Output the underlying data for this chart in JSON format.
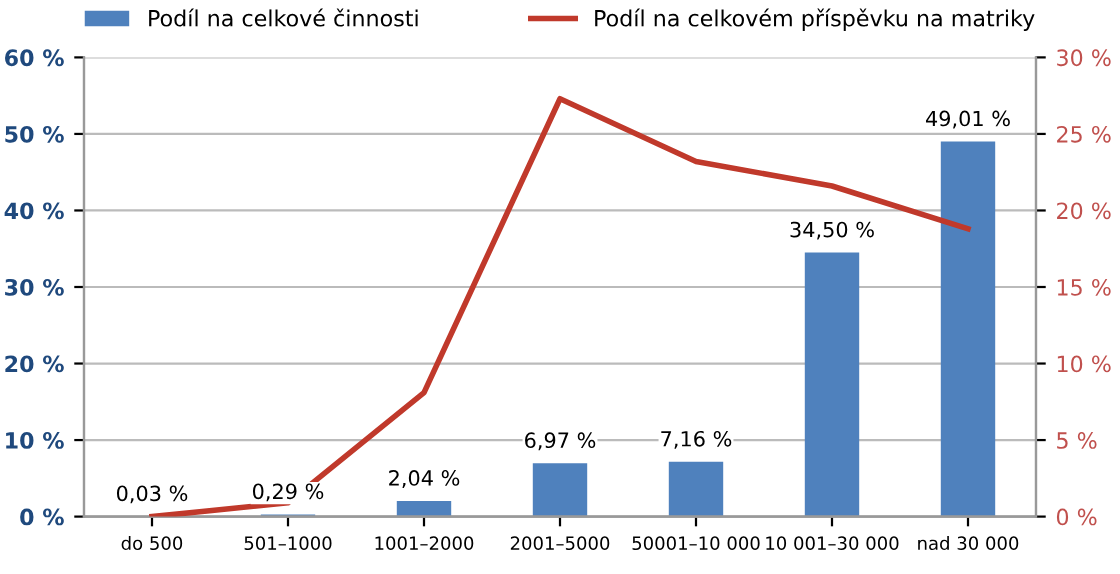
{
  "chart_data": {
    "type": "bar",
    "categories": [
      "do 500",
      "501–1000",
      "1001–2000",
      "2001–5000",
      "50001–10 000",
      "10 001–30 000",
      "nad 30 000"
    ],
    "series": [
      {
        "name": "Podíl na celkové činnosti",
        "color": "#4f81bd",
        "values": [
          0.03,
          0.29,
          2.04,
          6.97,
          7.16,
          34.5,
          49.01
        ],
        "value_labels": [
          "0,03 %",
          "0,29 %",
          "2,04 %",
          "6,97 %",
          "7,16 %",
          "34,50 %",
          "49,01 %"
        ]
      },
      {
        "name": "Podíl na celkovém příspěvku na matriky",
        "type": "line",
        "axis": "y2",
        "color": "#c0392b",
        "values": [
          0,
          0.9,
          8.1,
          27.3,
          23.2,
          21.6,
          18.8
        ]
      }
    ],
    "ylim": [
      0,
      60
    ],
    "yticks": [
      {
        "value": 0,
        "label": "0 %"
      },
      {
        "value": 10,
        "label": "10 %"
      },
      {
        "value": 20,
        "label": "20 %"
      },
      {
        "value": 30,
        "label": "30 %"
      },
      {
        "value": 40,
        "label": "40 %"
      },
      {
        "value": 50,
        "label": "50 %"
      },
      {
        "value": 60,
        "label": "60 %"
      }
    ],
    "y2lim": [
      0,
      30
    ],
    "y2ticks": [
      {
        "value": 0,
        "label": "0 %"
      },
      {
        "value": 5,
        "label": "5 %"
      },
      {
        "value": 10,
        "label": "10 %"
      },
      {
        "value": 15,
        "label": "15 %"
      },
      {
        "value": 20,
        "label": "20 %"
      },
      {
        "value": 25,
        "label": "25 %"
      },
      {
        "value": 30,
        "label": "30 %"
      }
    ],
    "grid": "y",
    "legend": "top",
    "marker": "none",
    "line_style": "solid"
  }
}
